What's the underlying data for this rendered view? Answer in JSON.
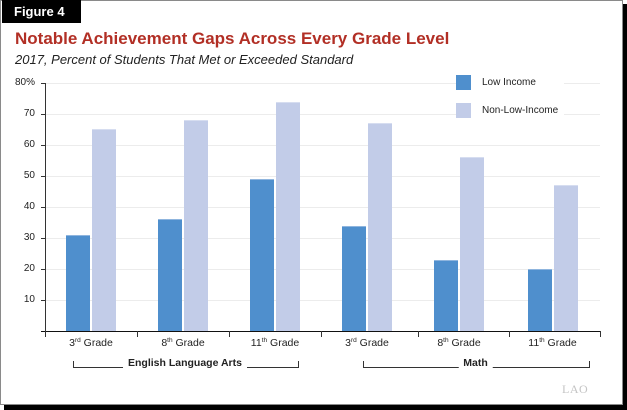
{
  "figure_label": "Figure 4",
  "title": "Notable Achievement Gaps Across Every Grade Level",
  "subtitle": "2017, Percent of Students That Met or Exceeded Standard",
  "watermark": "LAO",
  "colors": {
    "title": "#b22f25",
    "low_income": "#4f8fcd",
    "non_low_income": "#c2cce8"
  },
  "legend": [
    {
      "label": "Low Income",
      "color": "#4f8fcd"
    },
    {
      "label": "Non-Low-Income",
      "color": "#c2cce8"
    }
  ],
  "y_ticks": [
    "80%",
    "70",
    "60",
    "50",
    "40",
    "30",
    "20",
    "10"
  ],
  "categories": [
    {
      "num": "3",
      "sup": "rd",
      "word": "Grade"
    },
    {
      "num": "8",
      "sup": "th",
      "word": "Grade"
    },
    {
      "num": "11",
      "sup": "th",
      "word": "Grade"
    },
    {
      "num": "3",
      "sup": "rd",
      "word": "Grade"
    },
    {
      "num": "8",
      "sup": "th",
      "word": "Grade"
    },
    {
      "num": "11",
      "sup": "th",
      "word": "Grade"
    }
  ],
  "groups": [
    {
      "label": "English Language Arts"
    },
    {
      "label": "Math"
    }
  ],
  "chart_data": {
    "type": "bar",
    "title": "Notable Achievement Gaps Across Every Grade Level",
    "subtitle": "2017, Percent of Students That Met or Exceeded Standard",
    "xlabel": "",
    "ylabel": "",
    "ylim": [
      0,
      80
    ],
    "y_ticks": [
      0,
      10,
      20,
      30,
      40,
      50,
      60,
      70,
      80
    ],
    "y_tick_format": "80% on top tick",
    "grid": true,
    "legend_position": "top-right",
    "categories": [
      "ELA 3rd Grade",
      "ELA 8th Grade",
      "ELA 11th Grade",
      "Math 3rd Grade",
      "Math 8th Grade",
      "Math 11th Grade"
    ],
    "category_groups": [
      {
        "label": "English Language Arts",
        "categories": [
          "3rd Grade",
          "8th Grade",
          "11th Grade"
        ]
      },
      {
        "label": "Math",
        "categories": [
          "3rd Grade",
          "8th Grade",
          "11th Grade"
        ]
      }
    ],
    "series": [
      {
        "name": "Low Income",
        "values": [
          31,
          36,
          49,
          34,
          23,
          20
        ]
      },
      {
        "name": "Non-Low-Income",
        "values": [
          65,
          68,
          74,
          67,
          56,
          47
        ]
      }
    ]
  }
}
